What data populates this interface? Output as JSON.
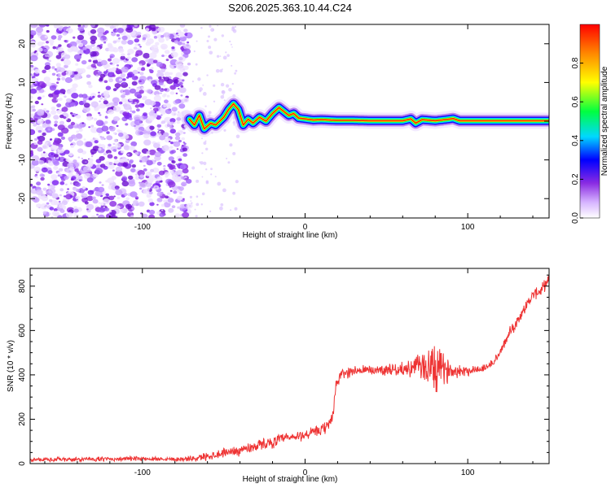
{
  "title": "S206.2025.363.10.44.C24",
  "chart_data": [
    {
      "type": "heatmap",
      "xlabel": "Height of straight line (km)",
      "ylabel": "Frequency (Hz)",
      "xlim": [
        -169,
        150
      ],
      "ylim": [
        -25,
        25
      ],
      "xticks": [
        -100,
        0,
        100
      ],
      "yticks": [
        -20,
        -10,
        0,
        10,
        20
      ],
      "ytick_labels": [
        "-20",
        "-10",
        "0",
        "10",
        "20"
      ],
      "noise_region_x": [
        -169,
        -71
      ],
      "ridge": {
        "x": [
          -71,
          -68,
          -65,
          -62,
          -58,
          -55,
          -50,
          -47,
          -44,
          -41,
          -38,
          -35,
          -32,
          -28,
          -24,
          -20,
          -16,
          -13,
          -10,
          -7,
          -4,
          0,
          5,
          10,
          20,
          30,
          40,
          50,
          60,
          65,
          68,
          72,
          80,
          88,
          91,
          95,
          110,
          130,
          150
        ],
        "freq": [
          0.5,
          -1,
          1.5,
          -2,
          -0.5,
          -1,
          1,
          3,
          4.5,
          3,
          -1,
          0.5,
          -0.5,
          1,
          0,
          2,
          3.5,
          2.5,
          1.5,
          2,
          0.8,
          0.6,
          0.3,
          0.4,
          0.2,
          0.2,
          0.1,
          0.1,
          0.1,
          0.6,
          -0.5,
          0.4,
          0.1,
          0.5,
          0.7,
          0.1,
          0.1,
          0.1,
          0.1
        ]
      },
      "colorbar": {
        "label": "Normalized spectral amplitude",
        "range": [
          0.0,
          1.0
        ],
        "ticks": [
          0.0,
          0.2,
          0.4,
          0.6,
          0.8
        ],
        "tick_labels": [
          "0.0",
          "0.2",
          "0.4",
          "0.6",
          "0.8"
        ]
      }
    },
    {
      "type": "line",
      "xlabel": "Height of straight line (km)",
      "ylabel": "SNR (10 * v/v)",
      "xlim": [
        -169,
        150
      ],
      "ylim": [
        0,
        880
      ],
      "xticks": [
        -100,
        0,
        100
      ],
      "yticks": [
        0,
        200,
        400,
        600,
        800
      ],
      "ytick_labels": [
        "0",
        "200",
        "400",
        "600",
        "800"
      ],
      "color": "#ee3333",
      "series": [
        {
          "name": "SNR",
          "x": [
            -169,
            -150,
            -130,
            -110,
            -90,
            -75,
            -65,
            -60,
            -55,
            -50,
            -45,
            -40,
            -35,
            -30,
            -25,
            -20,
            -15,
            -10,
            -5,
            0,
            5,
            10,
            14,
            17,
            19,
            22,
            26,
            30,
            40,
            50,
            60,
            65,
            70,
            73,
            76,
            78,
            80,
            84,
            90,
            100,
            105,
            110,
            115,
            120,
            125,
            130,
            135,
            140,
            145,
            150
          ],
          "y": [
            18,
            18,
            20,
            22,
            22,
            20,
            25,
            35,
            40,
            50,
            55,
            60,
            70,
            80,
            90,
            95,
            110,
            115,
            120,
            130,
            140,
            150,
            170,
            220,
            350,
            400,
            410,
            420,
            420,
            425,
            425,
            430,
            440,
            440,
            430,
            420,
            430,
            425,
            420,
            420,
            425,
            430,
            450,
            500,
            580,
            640,
            700,
            760,
            780,
            830
          ],
          "noise": [
            10,
            10,
            10,
            10,
            10,
            10,
            15,
            20,
            20,
            20,
            20,
            25,
            25,
            25,
            25,
            25,
            25,
            25,
            25,
            25,
            25,
            25,
            30,
            35,
            30,
            25,
            25,
            25,
            25,
            25,
            30,
            40,
            55,
            70,
            110,
            130,
            120,
            80,
            35,
            25,
            20,
            20,
            20,
            20,
            25,
            25,
            25,
            25,
            25,
            25
          ]
        }
      ]
    }
  ]
}
